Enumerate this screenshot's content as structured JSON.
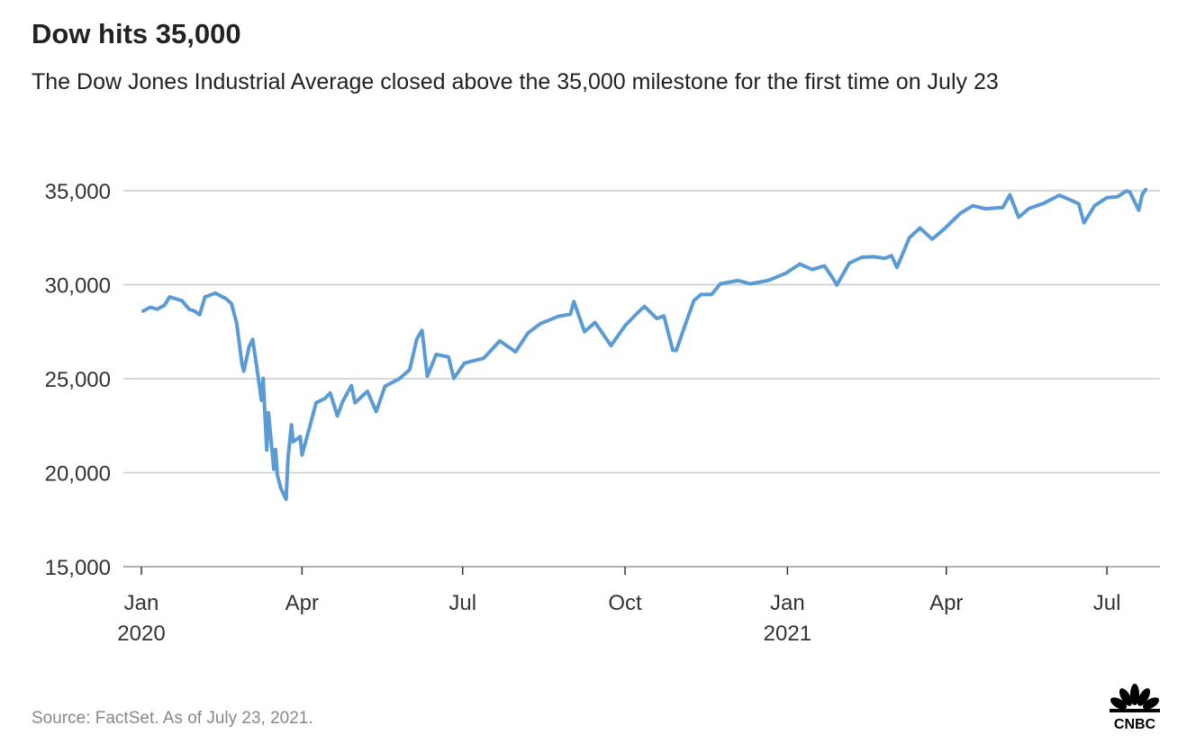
{
  "chart_data": {
    "type": "line",
    "title": "Dow hits 35,000",
    "subtitle": "The Dow Jones Industrial Average closed above the 35,000 milestone for the first time on July 23",
    "source": "Source: FactSet. As of July 23, 2021.",
    "logo_text": "CNBC",
    "line_color": "#5b9bd5",
    "grid": true,
    "ylim": [
      15000,
      35000
    ],
    "yticks": [
      15000,
      20000,
      25000,
      30000,
      35000
    ],
    "ytick_labels": [
      "15,000",
      "20,000",
      "25,000",
      "30,000",
      "35,000"
    ],
    "xticks": [
      {
        "date": "2020-01-01",
        "label": "Jan",
        "year": "2020"
      },
      {
        "date": "2020-04-01",
        "label": "Apr",
        "year": ""
      },
      {
        "date": "2020-07-01",
        "label": "Jul",
        "year": ""
      },
      {
        "date": "2020-10-01",
        "label": "Oct",
        "year": ""
      },
      {
        "date": "2021-01-01",
        "label": "Jan",
        "year": "2021"
      },
      {
        "date": "2021-04-01",
        "label": "Apr",
        "year": ""
      },
      {
        "date": "2021-07-01",
        "label": "Jul",
        "year": ""
      }
    ],
    "series": [
      {
        "points": [
          [
            "2020-01-02",
            28600
          ],
          [
            "2020-01-06",
            28800
          ],
          [
            "2020-01-10",
            28700
          ],
          [
            "2020-01-14",
            28900
          ],
          [
            "2020-01-17",
            29350
          ],
          [
            "2020-01-24",
            29150
          ],
          [
            "2020-01-28",
            28700
          ],
          [
            "2020-01-31",
            28600
          ],
          [
            "2020-02-03",
            28400
          ],
          [
            "2020-02-06",
            29350
          ],
          [
            "2020-02-12",
            29550
          ],
          [
            "2020-02-18",
            29250
          ],
          [
            "2020-02-21",
            28990
          ],
          [
            "2020-02-24",
            27960
          ],
          [
            "2020-02-27",
            25770
          ],
          [
            "2020-02-28",
            25400
          ],
          [
            "2020-03-02",
            26700
          ],
          [
            "2020-03-04",
            27090
          ],
          [
            "2020-03-06",
            25860
          ],
          [
            "2020-03-09",
            23850
          ],
          [
            "2020-03-10",
            25020
          ],
          [
            "2020-03-12",
            21200
          ],
          [
            "2020-03-13",
            23185
          ],
          [
            "2020-03-16",
            20190
          ],
          [
            "2020-03-17",
            21240
          ],
          [
            "2020-03-18",
            19900
          ],
          [
            "2020-03-20",
            19170
          ],
          [
            "2020-03-23",
            18590
          ],
          [
            "2020-03-24",
            20700
          ],
          [
            "2020-03-26",
            22550
          ],
          [
            "2020-03-27",
            21640
          ],
          [
            "2020-03-31",
            21920
          ],
          [
            "2020-04-01",
            20940
          ],
          [
            "2020-04-06",
            22680
          ],
          [
            "2020-04-09",
            23720
          ],
          [
            "2020-04-14",
            23950
          ],
          [
            "2020-04-17",
            24240
          ],
          [
            "2020-04-21",
            23020
          ],
          [
            "2020-04-24",
            23780
          ],
          [
            "2020-04-29",
            24630
          ],
          [
            "2020-05-01",
            23720
          ],
          [
            "2020-05-08",
            24330
          ],
          [
            "2020-05-13",
            23250
          ],
          [
            "2020-05-18",
            24600
          ],
          [
            "2020-05-26",
            24990
          ],
          [
            "2020-06-01",
            25480
          ],
          [
            "2020-06-05",
            27110
          ],
          [
            "2020-06-08",
            27570
          ],
          [
            "2020-06-11",
            25130
          ],
          [
            "2020-06-16",
            26290
          ],
          [
            "2020-06-23",
            26160
          ],
          [
            "2020-06-26",
            25020
          ],
          [
            "2020-07-02",
            25830
          ],
          [
            "2020-07-13",
            26090
          ],
          [
            "2020-07-22",
            27010
          ],
          [
            "2020-07-31",
            26430
          ],
          [
            "2020-08-07",
            27430
          ],
          [
            "2020-08-14",
            27930
          ],
          [
            "2020-08-24",
            28310
          ],
          [
            "2020-08-31",
            28430
          ],
          [
            "2020-09-02",
            29100
          ],
          [
            "2020-09-08",
            27500
          ],
          [
            "2020-09-14",
            27990
          ],
          [
            "2020-09-23",
            26760
          ],
          [
            "2020-10-01",
            27820
          ],
          [
            "2020-10-09",
            28590
          ],
          [
            "2020-10-12",
            28840
          ],
          [
            "2020-10-19",
            28200
          ],
          [
            "2020-10-23",
            28340
          ],
          [
            "2020-10-28",
            26520
          ],
          [
            "2020-10-30",
            26500
          ],
          [
            "2020-11-04",
            27850
          ],
          [
            "2020-11-09",
            29160
          ],
          [
            "2020-11-13",
            29480
          ],
          [
            "2020-11-19",
            29480
          ],
          [
            "2020-11-24",
            30050
          ],
          [
            "2020-12-04",
            30220
          ],
          [
            "2020-12-11",
            30050
          ],
          [
            "2020-12-21",
            30220
          ],
          [
            "2020-12-31",
            30610
          ],
          [
            "2021-01-08",
            31100
          ],
          [
            "2021-01-15",
            30810
          ],
          [
            "2021-01-22",
            31000
          ],
          [
            "2021-01-27",
            30300
          ],
          [
            "2021-01-29",
            29980
          ],
          [
            "2021-02-05",
            31150
          ],
          [
            "2021-02-12",
            31460
          ],
          [
            "2021-02-19",
            31490
          ],
          [
            "2021-02-25",
            31400
          ],
          [
            "2021-03-01",
            31540
          ],
          [
            "2021-03-04",
            30920
          ],
          [
            "2021-03-08",
            31800
          ],
          [
            "2021-03-11",
            32490
          ],
          [
            "2021-03-17",
            33020
          ],
          [
            "2021-03-24",
            32420
          ],
          [
            "2021-03-31",
            32980
          ],
          [
            "2021-04-09",
            33800
          ],
          [
            "2021-04-16",
            34200
          ],
          [
            "2021-04-23",
            34040
          ],
          [
            "2021-05-03",
            34110
          ],
          [
            "2021-05-07",
            34780
          ],
          [
            "2021-05-12",
            33590
          ],
          [
            "2021-05-18",
            34060
          ],
          [
            "2021-05-26",
            34320
          ],
          [
            "2021-06-04",
            34760
          ],
          [
            "2021-06-11",
            34480
          ],
          [
            "2021-06-15",
            34300
          ],
          [
            "2021-06-18",
            33290
          ],
          [
            "2021-06-24",
            34200
          ],
          [
            "2021-07-01",
            34630
          ],
          [
            "2021-07-07",
            34680
          ],
          [
            "2021-07-12",
            34990
          ],
          [
            "2021-07-14",
            34930
          ],
          [
            "2021-07-19",
            33960
          ],
          [
            "2021-07-21",
            34800
          ],
          [
            "2021-07-23",
            35060
          ]
        ]
      }
    ]
  }
}
